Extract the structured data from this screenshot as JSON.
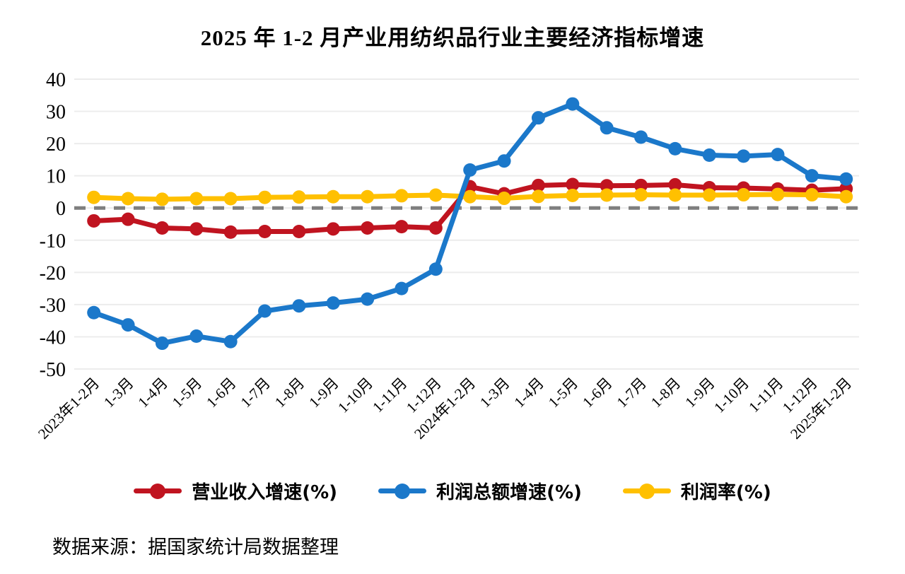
{
  "title": "2025 年 1-2 月产业用纺织品行业主要经济指标增速",
  "source": "数据来源：据国家统计局数据整理",
  "chart_data": {
    "type": "line",
    "title": "2025 年 1-2 月产业用纺织品行业主要经济指标增速",
    "categories": [
      "2023年1-2月",
      "1-3月",
      "1-4月",
      "1-5月",
      "1-6月",
      "1-7月",
      "1-8月",
      "1-9月",
      "1-10月",
      "1-11月",
      "1-12月",
      "2024年1-2月",
      "1-3月",
      "1-4月",
      "1-5月",
      "1-6月",
      "1-7月",
      "1-8月",
      "1-9月",
      "1-10月",
      "1-11月",
      "1-12月",
      "2025年1-2月"
    ],
    "series": [
      {
        "name": "营业收入增速(%)",
        "color": "#C01420",
        "values": [
          -4.0,
          -3.5,
          -6.2,
          -6.5,
          -7.5,
          -7.3,
          -7.3,
          -6.5,
          -6.2,
          -5.8,
          -6.2,
          6.6,
          4.4,
          7.0,
          7.3,
          6.9,
          7.0,
          7.2,
          6.3,
          6.2,
          5.9,
          5.5,
          6.0
        ]
      },
      {
        "name": "利润总额增速(%)",
        "color": "#1B78CA",
        "values": [
          -32.5,
          -36.3,
          -42.0,
          -39.8,
          -41.5,
          -32.0,
          -30.4,
          -29.5,
          -28.3,
          -25.0,
          -19.0,
          11.8,
          14.6,
          28.0,
          32.3,
          24.9,
          22.0,
          18.4,
          16.4,
          16.1,
          16.6,
          10.0,
          9.0
        ]
      },
      {
        "name": "利润率(%)",
        "color": "#FFC000",
        "values": [
          3.3,
          2.9,
          2.7,
          2.9,
          2.9,
          3.3,
          3.4,
          3.5,
          3.5,
          3.8,
          4.0,
          3.5,
          3.0,
          3.6,
          3.9,
          4.0,
          4.1,
          4.0,
          4.0,
          4.1,
          4.2,
          4.1,
          3.5
        ]
      }
    ],
    "ylim": [
      -50,
      40
    ],
    "ytick_step": 10,
    "yticks": [
      "40",
      "30",
      "20",
      "10",
      "0",
      "-10",
      "-20",
      "-30",
      "-40",
      "-50"
    ],
    "grid": true,
    "gridline_color": "#ECECEC",
    "zero_line": {
      "style": "dashed",
      "color": "#7F7F7F"
    },
    "legend_position": "bottom",
    "xlabel": "",
    "ylabel": ""
  }
}
